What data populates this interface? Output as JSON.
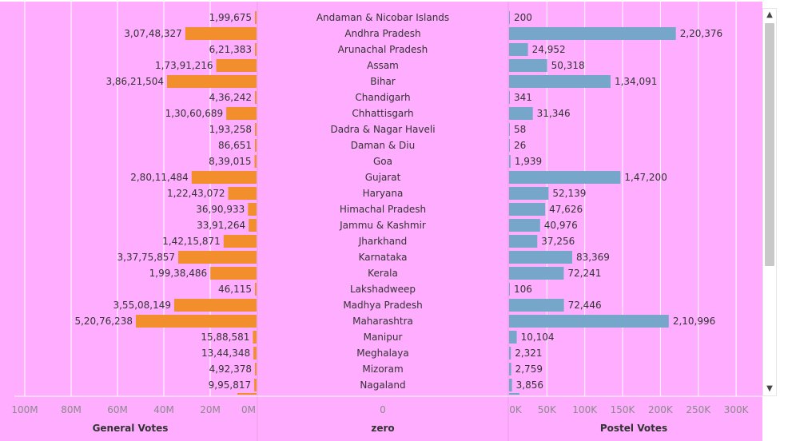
{
  "colors": {
    "background": "#ffadfe",
    "general_bar": "#f28e2b",
    "postal_bar": "#76a7cb",
    "grid": "#ffffff",
    "text": "#333333",
    "axis_text": "#8a8a8a"
  },
  "icons": {
    "scroll_up": "▲",
    "scroll_down": "▼"
  },
  "chart_data": [
    {
      "type": "bar",
      "orientation": "horizontal",
      "direction": "right-to-left",
      "xlabel": "General Votes",
      "xlim": [
        0,
        105000000
      ],
      "ticks": [
        "100M",
        "80M",
        "60M",
        "40M",
        "20M",
        "0M"
      ],
      "tick_values": [
        100000000,
        80000000,
        60000000,
        40000000,
        20000000,
        0
      ],
      "grid": true,
      "categories": [
        "Andaman & Nicobar Islands",
        "Andhra Pradesh",
        "Arunachal Pradesh",
        "Assam",
        "Bihar",
        "Chandigarh",
        "Chhattisgarh",
        "Dadra & Nagar Haveli",
        "Daman & Diu",
        "Goa",
        "Gujarat",
        "Haryana",
        "Himachal Pradesh",
        "Jammu & Kashmir",
        "Jharkhand",
        "Karnataka",
        "Kerala",
        "Lakshadweep",
        "Madhya Pradesh",
        "Maharashtra",
        "Manipur",
        "Meghalaya",
        "Mizoram",
        "Nagaland"
      ],
      "values": [
        199675,
        30748327,
        621383,
        17391216,
        38621504,
        436242,
        13060689,
        193258,
        86651,
        839015,
        28011484,
        12243072,
        3690933,
        3391264,
        14215871,
        33775857,
        19938486,
        46115,
        35508149,
        52076238,
        1588581,
        1344348,
        492378,
        995817
      ],
      "labels": [
        "1,99,675",
        "3,07,48,327",
        "6,21,383",
        "1,73,91,216",
        "3,86,21,504",
        "4,36,242",
        "1,30,60,689",
        "1,93,258",
        "86,651",
        "8,39,015",
        "2,80,11,484",
        "1,22,43,072",
        "36,90,933",
        "33,91,264",
        "1,42,15,871",
        "3,37,75,857",
        "1,99,38,486",
        "46,115",
        "3,55,08,149",
        "5,20,76,238",
        "15,88,581",
        "13,44,348",
        "4,92,378",
        "9,95,817"
      ]
    },
    {
      "type": "table",
      "xlabel": "zero",
      "ticks": [
        "0"
      ]
    },
    {
      "type": "bar",
      "orientation": "horizontal",
      "xlabel": "Postel Votes",
      "xlim": [
        0,
        320000
      ],
      "ticks": [
        "0K",
        "50K",
        "100K",
        "150K",
        "200K",
        "250K",
        "300K"
      ],
      "tick_values": [
        0,
        50000,
        100000,
        150000,
        200000,
        250000,
        300000
      ],
      "grid": true,
      "values": [
        200,
        220376,
        24952,
        50318,
        134091,
        341,
        31346,
        58,
        26,
        1939,
        147200,
        52139,
        47626,
        40976,
        37256,
        83369,
        72241,
        106,
        72446,
        210996,
        10104,
        2321,
        2759,
        3856
      ],
      "labels": [
        "200",
        "2,20,376",
        "24,952",
        "50,318",
        "1,34,091",
        "341",
        "31,346",
        "58",
        "26",
        "1,939",
        "1,47,200",
        "52,139",
        "47,626",
        "40,976",
        "37,256",
        "83,369",
        "72,241",
        "106",
        "72,446",
        "2,10,996",
        "10,104",
        "2,321",
        "2,759",
        "3,856"
      ]
    }
  ]
}
